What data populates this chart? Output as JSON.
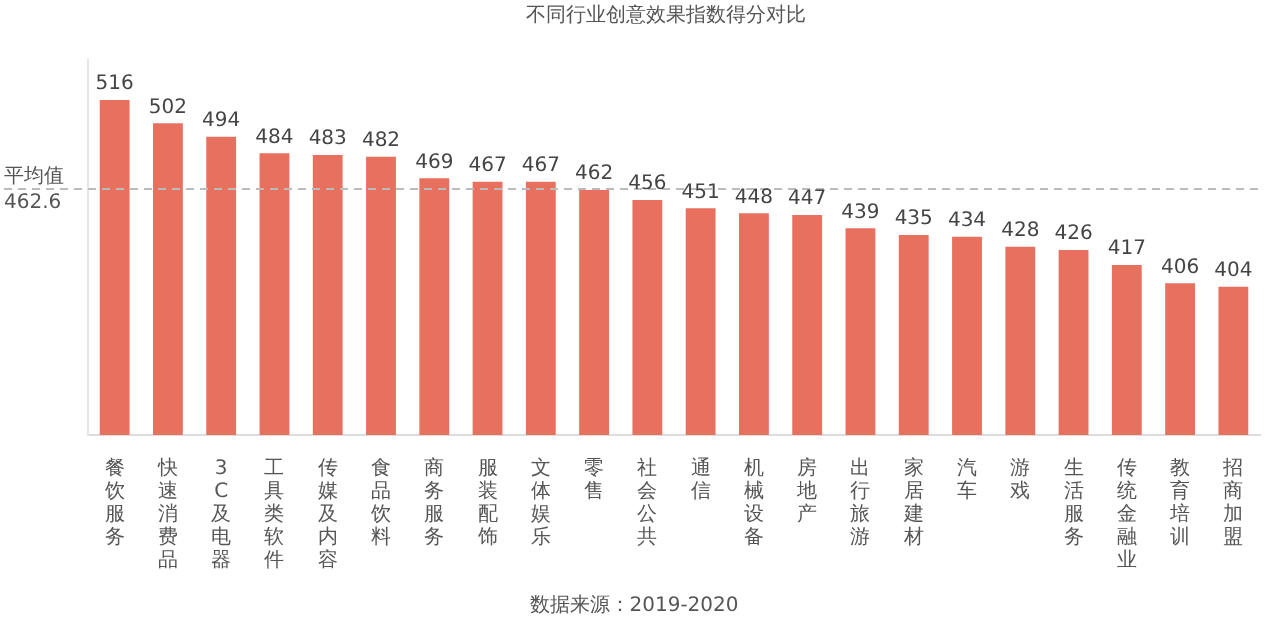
{
  "chart_data": {
    "type": "bar",
    "title": "不同行业创意效果指数得分对比",
    "categories": [
      "餐饮服务",
      "快速消费品",
      "3C及电器",
      "工具类软件",
      "传媒及内容",
      "食品饮料",
      "商务服务",
      "服装配饰",
      "文体娱乐",
      "零售",
      "社会公共",
      "通信",
      "机械设备",
      "房地产",
      "出行旅游",
      "家居建材",
      "汽车",
      "游戏",
      "生活服务",
      "传统金融业",
      "教育培训",
      "招商加盟"
    ],
    "values": [
      516,
      502,
      494,
      484,
      483,
      482,
      469,
      467,
      467,
      462,
      456,
      451,
      448,
      447,
      439,
      435,
      434,
      428,
      426,
      417,
      406,
      404
    ],
    "color": "#e8705e",
    "ylim": [
      315,
      540
    ],
    "tick_labels": "x",
    "grid": false,
    "legend": false,
    "data_labels": true,
    "ref_lines": [
      {
        "axis": "y",
        "value": 462.6,
        "label": "平均值\n462.6",
        "color": "#bbbbbb",
        "line_style": "dashed"
      }
    ],
    "annotations": [
      "数据来源：2019-2020"
    ]
  }
}
